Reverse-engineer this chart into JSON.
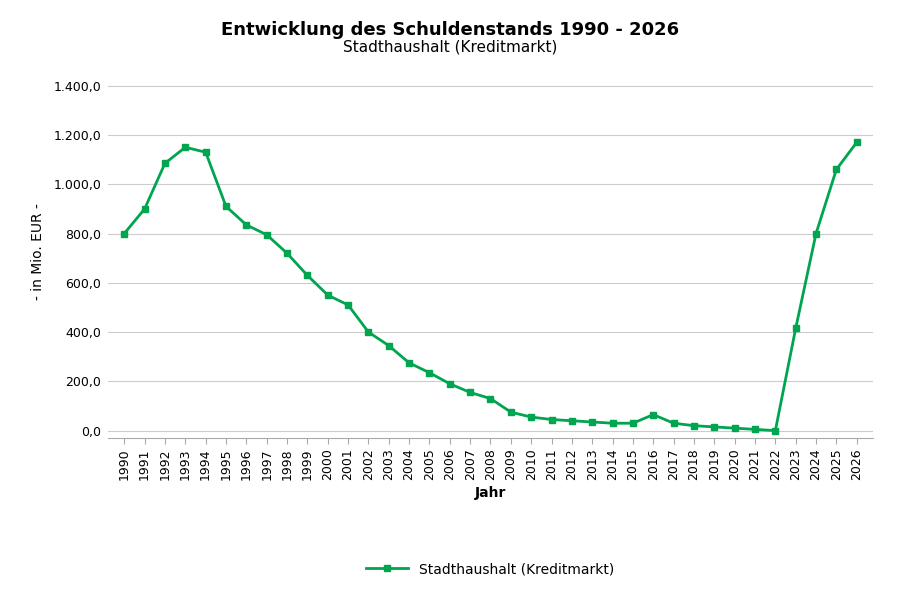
{
  "title": "Entwicklung des Schuldenstands 1990 - 2026",
  "subtitle": "Stadthaushalt (Kreditmarkt)",
  "xlabel": "Jahr",
  "ylabel": "- in Mio. EUR -",
  "legend_label": "Stadthaushalt (Kreditmarkt)",
  "line_color": "#00a550",
  "marker": "s",
  "background_color": "#ffffff",
  "grid_color": "#cccccc",
  "years": [
    1990,
    1991,
    1992,
    1993,
    1994,
    1995,
    1996,
    1997,
    1998,
    1999,
    2000,
    2001,
    2002,
    2003,
    2004,
    2005,
    2006,
    2007,
    2008,
    2009,
    2010,
    2011,
    2012,
    2013,
    2014,
    2015,
    2016,
    2017,
    2018,
    2019,
    2020,
    2021,
    2022,
    2023,
    2024,
    2025,
    2026
  ],
  "values": [
    800,
    900,
    1085,
    1150,
    1130,
    910,
    835,
    795,
    720,
    630,
    550,
    510,
    400,
    345,
    275,
    235,
    190,
    155,
    130,
    75,
    55,
    45,
    40,
    35,
    30,
    30,
    65,
    30,
    20,
    15,
    10,
    5,
    0,
    415,
    800,
    1060,
    1170
  ],
  "yticks": [
    0,
    200,
    400,
    600,
    800,
    1000,
    1200,
    1400
  ],
  "ytick_labels": [
    "0,0",
    "200,0",
    "400,0",
    "600,0",
    "800,0",
    "1.000,0",
    "1.200,0",
    "1.400,0"
  ],
  "ylim": [
    -30,
    1480
  ],
  "title_fontsize": 13,
  "subtitle_fontsize": 11,
  "axis_label_fontsize": 10,
  "tick_fontsize": 9,
  "legend_fontsize": 10,
  "linewidth": 2.0,
  "markersize": 5
}
